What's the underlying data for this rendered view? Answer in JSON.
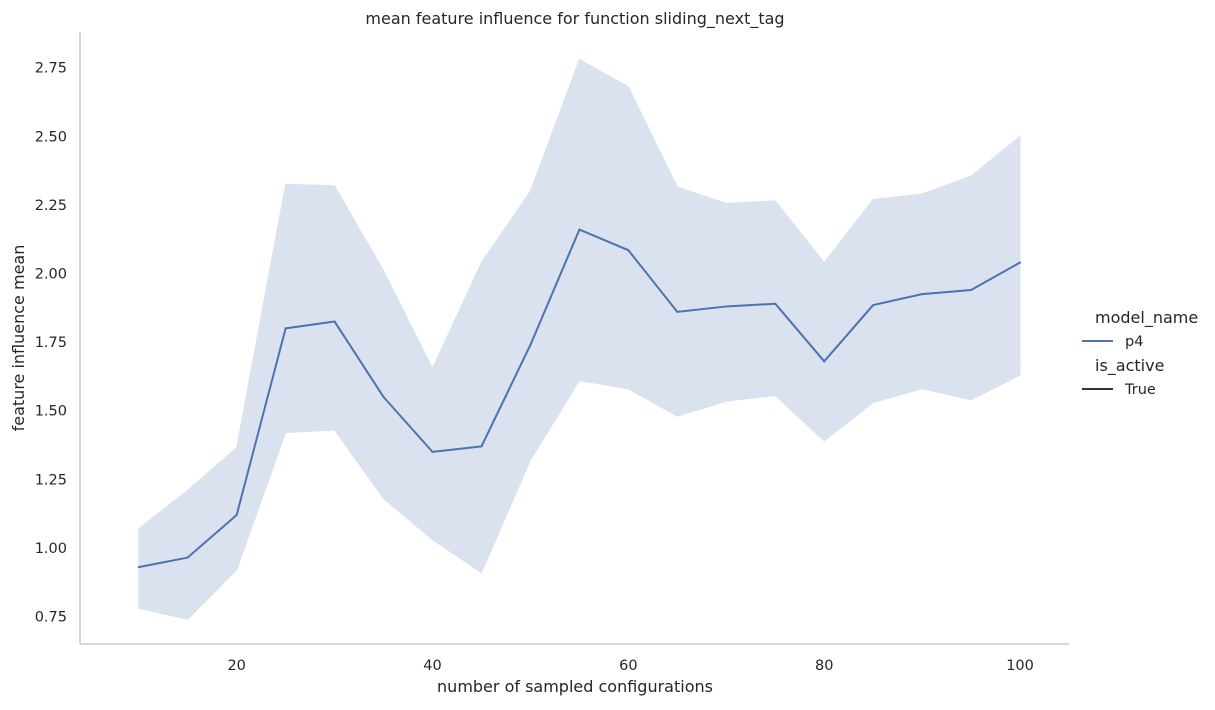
{
  "chart_data": {
    "type": "line",
    "title": "mean feature influence for function sliding_next_tag",
    "xlabel": "number of sampled configurations",
    "ylabel": "feature influence mean",
    "xlim": [
      4,
      105
    ],
    "ylim": [
      0.65,
      2.88
    ],
    "xticks": [
      20,
      40,
      60,
      80,
      100
    ],
    "yticks": [
      0.75,
      1.0,
      1.25,
      1.5,
      1.75,
      2.0,
      2.25,
      2.5,
      2.75
    ],
    "xtick_labels": [
      "20",
      "40",
      "60",
      "80",
      "100"
    ],
    "ytick_labels": [
      "0.75",
      "1.00",
      "1.25",
      "1.50",
      "1.75",
      "2.00",
      "2.25",
      "2.50",
      "2.75"
    ],
    "grid": false,
    "legend_position": "right",
    "legend": {
      "hue_title": "model_name",
      "hue_entries": [
        {
          "label": "p4",
          "color": "#4c72b0"
        }
      ],
      "style_title": "is_active",
      "style_entries": [
        {
          "label": "True",
          "color": "#333333"
        }
      ]
    },
    "series": [
      {
        "name": "p4",
        "color": "#4c72b0",
        "band_color": "#dbe2ef",
        "x": [
          10,
          15,
          20,
          25,
          30,
          35,
          40,
          45,
          50,
          55,
          60,
          65,
          70,
          75,
          80,
          85,
          90,
          95,
          100
        ],
        "y": [
          0.93,
          0.965,
          1.12,
          1.8,
          1.825,
          1.55,
          1.35,
          1.37,
          1.74,
          2.16,
          2.085,
          1.86,
          1.88,
          1.89,
          1.68,
          1.885,
          1.925,
          1.94,
          2.04
        ],
        "ci_lower": [
          0.78,
          0.74,
          0.92,
          1.42,
          1.43,
          1.18,
          1.03,
          0.91,
          1.32,
          1.61,
          1.58,
          1.48,
          1.535,
          1.555,
          1.39,
          1.53,
          1.58,
          1.54,
          1.63
        ],
        "ci_upper": [
          1.07,
          1.21,
          1.365,
          2.325,
          2.32,
          2.01,
          1.655,
          2.04,
          2.3,
          2.78,
          2.68,
          2.315,
          2.255,
          2.265,
          2.04,
          2.27,
          2.29,
          2.355,
          2.5
        ]
      }
    ]
  }
}
